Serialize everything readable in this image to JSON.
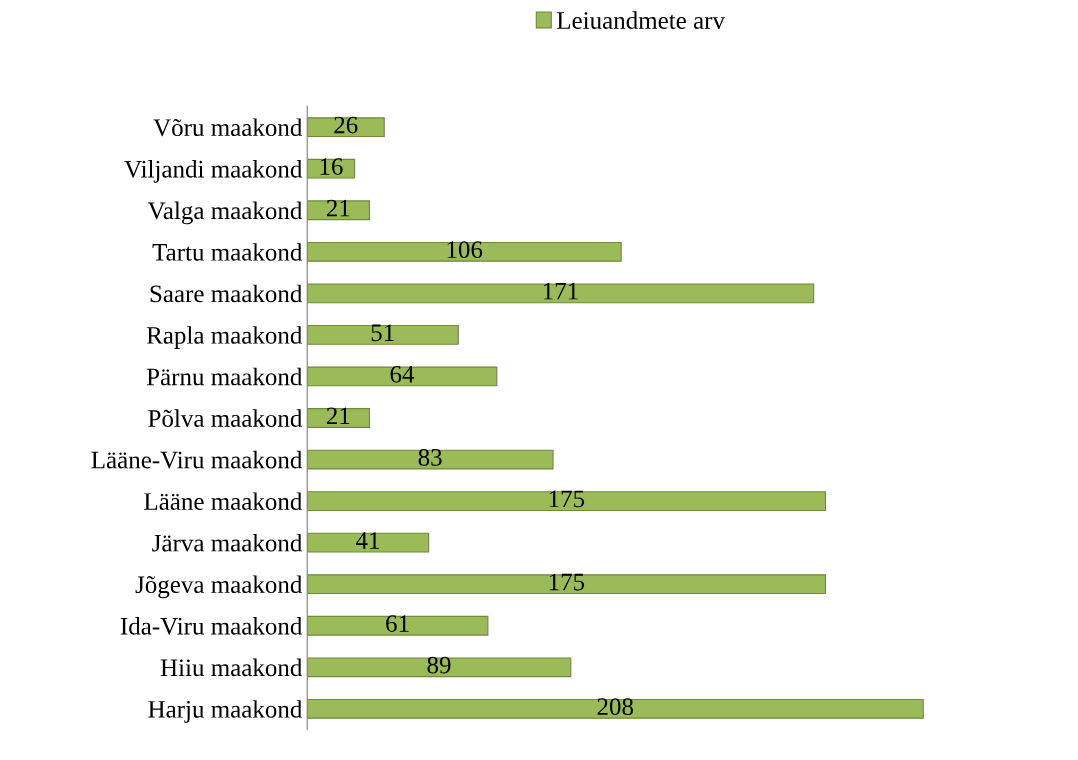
{
  "chart_data": {
    "type": "bar",
    "orientation": "horizontal",
    "categories": [
      "Võru maakond",
      "Viljandi maakond",
      "Valga maakond",
      "Tartu maakond",
      "Saare maakond",
      "Rapla maakond",
      "Pärnu maakond",
      "Põlva maakond",
      "Lääne-Viru maakond",
      "Lääne maakond",
      "Järva maakond",
      "Jõgeva maakond",
      "Ida-Viru maakond",
      "Hiiu maakond",
      "Harju maakond"
    ],
    "series": [
      {
        "name": "Leiuandmete arv",
        "color": "#9bbb59",
        "values": [
          26,
          16,
          21,
          106,
          171,
          51,
          64,
          21,
          83,
          175,
          41,
          175,
          61,
          89,
          208
        ]
      }
    ],
    "data_labels": true,
    "legend": "top",
    "grid": false,
    "tick_labels": "y"
  }
}
